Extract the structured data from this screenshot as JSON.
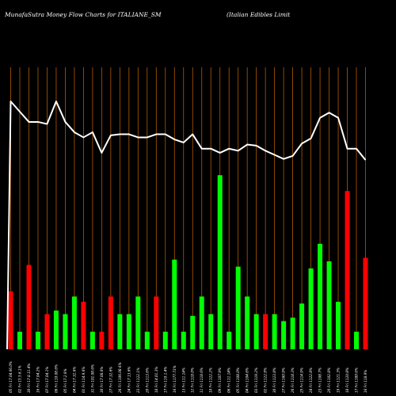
{
  "header": {
    "title_left": "MunafaSutra  Money Flow  Charts for ITALIANE_SM",
    "title_right": "(Italian  Edibles Limit"
  },
  "chart_data": {
    "type": "bar",
    "title": "MunafaSutra  Money Flow  Charts for ITALIANE_SM",
    "bar_colors": {
      "up": "#00ff00",
      "down": "#ff0000"
    },
    "line_color": "#ffffff",
    "grid_color": "#b35a00",
    "background": "#000000",
    "grid": true,
    "bars": [
      {
        "value": 33,
        "dir": "down"
      },
      {
        "value": 10,
        "dir": "up"
      },
      {
        "value": 48,
        "dir": "down"
      },
      {
        "value": 10,
        "dir": "up"
      },
      {
        "value": 20,
        "dir": "down"
      },
      {
        "value": 22,
        "dir": "up"
      },
      {
        "value": 20,
        "dir": "up"
      },
      {
        "value": 30,
        "dir": "up"
      },
      {
        "value": 27,
        "dir": "down"
      },
      {
        "value": 10,
        "dir": "up"
      },
      {
        "value": 10,
        "dir": "down"
      },
      {
        "value": 30,
        "dir": "down"
      },
      {
        "value": 20,
        "dir": "up"
      },
      {
        "value": 20,
        "dir": "up"
      },
      {
        "value": 30,
        "dir": "up"
      },
      {
        "value": 10,
        "dir": "up"
      },
      {
        "value": 30,
        "dir": "down"
      },
      {
        "value": 10,
        "dir": "up"
      },
      {
        "value": 51,
        "dir": "up"
      },
      {
        "value": 10,
        "dir": "up"
      },
      {
        "value": 19,
        "dir": "up"
      },
      {
        "value": 30,
        "dir": "up"
      },
      {
        "value": 20,
        "dir": "up"
      },
      {
        "value": 99,
        "dir": "up"
      },
      {
        "value": 10,
        "dir": "up"
      },
      {
        "value": 47,
        "dir": "up"
      },
      {
        "value": 30,
        "dir": "up"
      },
      {
        "value": 20,
        "dir": "up"
      },
      {
        "value": 20,
        "dir": "down"
      },
      {
        "value": 20,
        "dir": "up"
      },
      {
        "value": 16,
        "dir": "up"
      },
      {
        "value": 18,
        "dir": "up"
      },
      {
        "value": 26,
        "dir": "up"
      },
      {
        "value": 46,
        "dir": "up"
      },
      {
        "value": 60,
        "dir": "up"
      },
      {
        "value": 50,
        "dir": "up"
      },
      {
        "value": 27,
        "dir": "up"
      },
      {
        "value": 90,
        "dir": "down"
      },
      {
        "value": 10,
        "dir": "up"
      },
      {
        "value": 52,
        "dir": "down"
      }
    ],
    "price_line": [
      112,
      111,
      110,
      110,
      109.8,
      112,
      110,
      109,
      108.5,
      109,
      107,
      108.7,
      108.8,
      108.8,
      108.5,
      108.5,
      108.8,
      108.8,
      108.3,
      108,
      108.8,
      107.4,
      107.4,
      107,
      107.4,
      107.2,
      107.8,
      107.7,
      107.2,
      106.8,
      106.4,
      106.7,
      107.9,
      108.4,
      110.4,
      110.9,
      110.4,
      107.4,
      107.4,
      106.3
    ],
    "x_tick_labels": [
      "05 Fri 17.04.66.0%",
      "02 Fri 15.5.6.1%",
      "30 Fri 17.8.11.4%",
      "16 Fri 17.04.2%",
      "07 Fri 17.04.1%",
      "06 Fri 110.08.6%",
      "05 Fri 17.2.9%",
      "04 Fri 17.32.6%",
      "01 Fri 114.9.6%",
      "31 Fri 101.08.6%",
      "30 Fri 17.08.6%",
      "27 Fri 17.32.6%",
      "26 Fri 1106.08.6%",
      "24 Fri 17.13.6%",
      "23 Fri 1122.1%",
      "20 Fri 1113.6%",
      "18 Fri 14.01.3%",
      "17 Fri 110.1.4%",
      "16 Fri 1177.73%",
      "13 Fri 111.14%",
      "12 Fri 1118.0%",
      "11 Fri 1118.6%",
      "10 Fri 1122.2%",
      "09 Fri 1107.9%",
      "06 Fri 111.14%",
      "05 Fri 1108.0%",
      "04 Fri 1104.6%",
      "03 Fri 1119.2%",
      "02 Fri 1122.8%",
      "30 Fri 1123.8%",
      "27 Fri 1160.9%",
      "26 Fri 1118.3%",
      "25 Fri 1114.9%",
      "24 Fri 1122.8%",
      "23 Fri 1108.7%",
      "20 Fri 1102.8%",
      "19 Fri 1121.3%",
      "18 Fri 1120.8%",
      "17 Fri 1180.6%",
      "16 Fri 118.9%"
    ]
  }
}
